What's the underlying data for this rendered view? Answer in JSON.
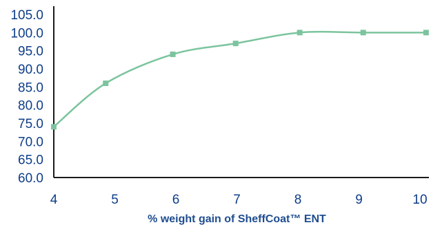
{
  "chart_data": {
    "type": "line",
    "title": "",
    "xlabel": "% weight gain of SheffCoat™ ENT",
    "ylabel": "",
    "xlim": [
      4,
      10
    ],
    "ylim": [
      60,
      105
    ],
    "x_ticks": [
      "4",
      "5",
      "6",
      "7",
      "8",
      "9",
      "10"
    ],
    "y_ticks": [
      "105.0",
      "100.0",
      "95.0",
      "90.0",
      "85.0",
      "80.0",
      "75.0",
      "70.0",
      "65.0",
      "60.0"
    ],
    "grid": false,
    "legend": "none",
    "series": [
      {
        "x": [
          4,
          4.85,
          5.95,
          6.98,
          8.03,
          9.07,
          10.1
        ],
        "y": [
          74.0,
          86.0,
          94.0,
          97.0,
          100.0,
          100.0,
          100.0
        ]
      }
    ]
  },
  "colors": {
    "axis_text": "#0d3d8a",
    "axis_title": "#1f4d8f",
    "axis_line": "#1a1a1a",
    "series_line": "#7cc49e",
    "series_marker": "#7cc49e"
  }
}
